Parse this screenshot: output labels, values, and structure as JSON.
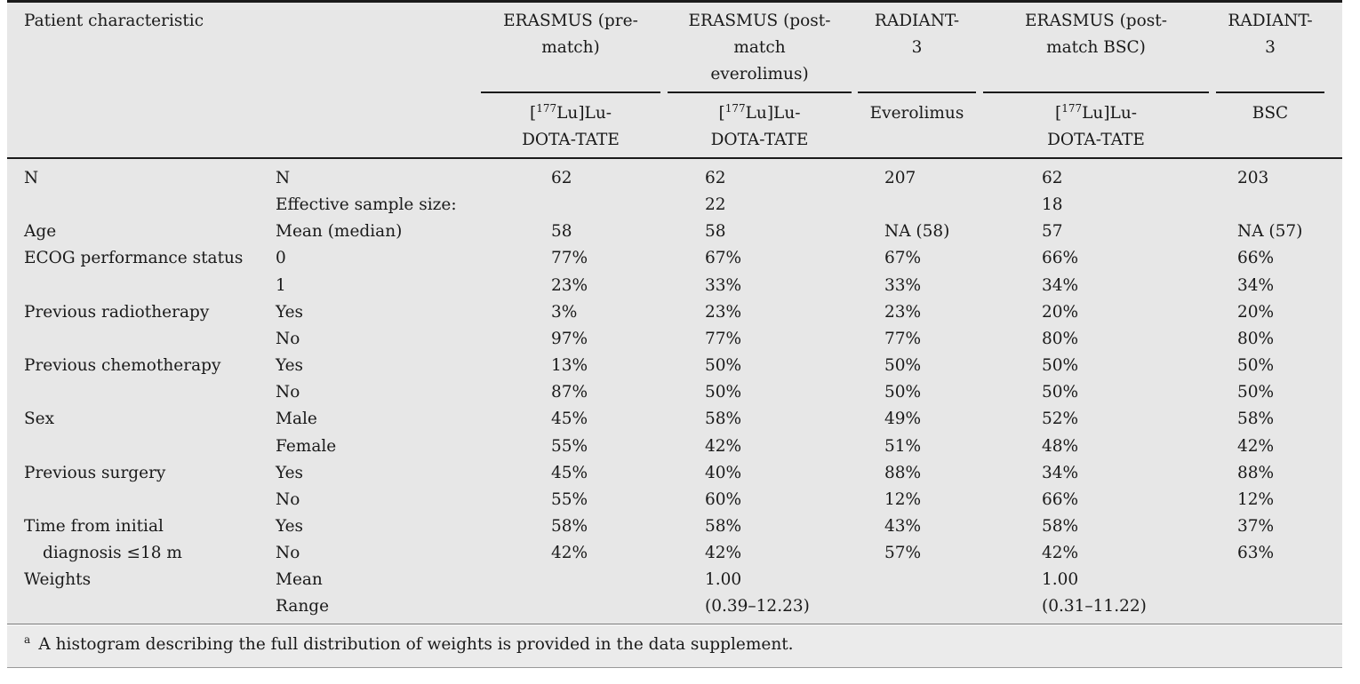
{
  "table": {
    "corner_header": "Patient characteristic",
    "columns": [
      {
        "header": [
          "ERASMUS (pre-",
          "match)"
        ],
        "subheader": {
          "prefix": "[",
          "sup": "177",
          "lines": [
            "Lu]Lu-",
            "DOTA-TATE"
          ]
        }
      },
      {
        "header": [
          "ERASMUS (post-",
          "match",
          "everolimus)"
        ],
        "subheader": {
          "prefix": "[",
          "sup": "177",
          "lines": [
            "Lu]Lu-",
            "DOTA-TATE"
          ]
        }
      },
      {
        "header": [
          "RADIANT-",
          "3"
        ],
        "subheader": "Everolimus"
      },
      {
        "header": [
          "ERASMUS (post-",
          "match BSC)"
        ],
        "subheader": {
          "prefix": "[",
          "sup": "177",
          "lines": [
            "Lu]Lu-",
            "DOTA-TATE"
          ]
        }
      },
      {
        "header": [
          "RADIANT-",
          "3"
        ],
        "subheader": "BSC"
      }
    ],
    "rows": [
      {
        "characteristic": "N",
        "measure": "N",
        "values": [
          "62",
          "62",
          "207",
          "62",
          "203"
        ]
      },
      {
        "characteristic": null,
        "measure": "Effective sample size:",
        "values": [
          null,
          "22",
          null,
          "18",
          null
        ]
      },
      {
        "characteristic": "Age",
        "measure": "Mean (median)",
        "values": [
          "58",
          "58",
          "NA (58)",
          "57",
          "NA (57)"
        ]
      },
      {
        "characteristic": "ECOG performance status",
        "measure": "0",
        "values": [
          "77%",
          "67%",
          "67%",
          "66%",
          "66%"
        ]
      },
      {
        "characteristic": null,
        "measure": "1",
        "values": [
          "23%",
          "33%",
          "33%",
          "34%",
          "34%"
        ]
      },
      {
        "characteristic": "Previous radiotherapy",
        "measure": "Yes",
        "values": [
          "3%",
          "23%",
          "23%",
          "20%",
          "20%"
        ]
      },
      {
        "characteristic": null,
        "measure": "No",
        "values": [
          "97%",
          "77%",
          "77%",
          "80%",
          "80%"
        ]
      },
      {
        "characteristic": "Previous chemotherapy",
        "measure": "Yes",
        "values": [
          "13%",
          "50%",
          "50%",
          "50%",
          "50%"
        ]
      },
      {
        "characteristic": null,
        "measure": "No",
        "values": [
          "87%",
          "50%",
          "50%",
          "50%",
          "50%"
        ]
      },
      {
        "characteristic": "Sex",
        "measure": "Male",
        "values": [
          "45%",
          "58%",
          "49%",
          "52%",
          "58%"
        ]
      },
      {
        "characteristic": null,
        "measure": "Female",
        "values": [
          "55%",
          "42%",
          "51%",
          "48%",
          "42%"
        ]
      },
      {
        "characteristic": "Previous surgery",
        "measure": "Yes",
        "values": [
          "45%",
          "40%",
          "88%",
          "34%",
          "88%"
        ]
      },
      {
        "characteristic": null,
        "measure": "No",
        "values": [
          "55%",
          "60%",
          "12%",
          "66%",
          "12%"
        ]
      },
      {
        "characteristic": "Time from initial",
        "measure": "Yes",
        "values": [
          "58%",
          "58%",
          "43%",
          "58%",
          "37%"
        ]
      },
      {
        "characteristic": "diagnosis ≤18 m",
        "measure": "No",
        "values": [
          "42%",
          "42%",
          "57%",
          "42%",
          "63%"
        ]
      },
      {
        "characteristic": "Weights",
        "measure": "Mean",
        "values": [
          null,
          "1.00",
          null,
          "1.00",
          null
        ]
      },
      {
        "characteristic": null,
        "measure": "Range",
        "values": [
          null,
          "(0.39–12.23)",
          null,
          "(0.31–11.22)",
          null
        ]
      }
    ]
  },
  "footnote": {
    "marker": "a",
    "text": "A histogram describing the full distribution of weights is provided in the data supplement."
  }
}
